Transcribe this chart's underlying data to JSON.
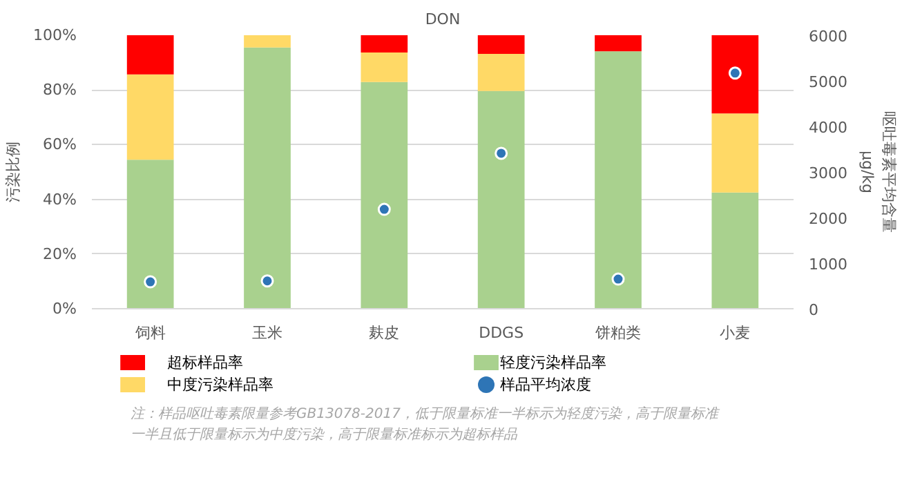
{
  "chart_data": {
    "type": "bar",
    "title": "DON",
    "ylabel": "污染比例",
    "y2label": "呕吐毒素平均含量\nμg/kg",
    "categories": [
      "饲料",
      "玉米",
      "麸皮",
      "DDGS",
      "饼粕类",
      "小麦"
    ],
    "stacked": true,
    "series": [
      {
        "name": "轻度污染样品率",
        "color": "#a9d18e",
        "values": [
          54.5,
          95.5,
          82.9,
          79.6,
          94.1,
          42.5
        ]
      },
      {
        "name": "中度污染样品率",
        "color": "#ffd966",
        "values": [
          31.2,
          4.5,
          10.8,
          13.6,
          0,
          28.9
        ]
      },
      {
        "name": "超标样品率",
        "color": "#ff0000",
        "values": [
          14.3,
          0,
          6.3,
          6.8,
          5.9,
          28.6
        ]
      },
      {
        "name": "样品平均浓度",
        "type": "scatter",
        "axis": "y2",
        "color": "#2e75b6",
        "values": [
          590,
          610,
          2180,
          3410,
          650,
          5170
        ]
      }
    ],
    "ylim": [
      0,
      100
    ],
    "yticks": [
      {
        "value": 0,
        "label": "0%"
      },
      {
        "value": 20,
        "label": "20%"
      },
      {
        "value": 40,
        "label": "40%"
      },
      {
        "value": 60,
        "label": "60%"
      },
      {
        "value": 80,
        "label": "80%"
      },
      {
        "value": 100,
        "label": "100%"
      }
    ],
    "y2lim": [
      0,
      6000
    ],
    "y2ticks": [
      0,
      1000,
      2000,
      3000,
      4000,
      5000,
      6000
    ],
    "grid": "y",
    "legend": "bottom",
    "marker": "circle",
    "annotations": [
      "注：样品呕吐毒素限量参考GB13078-2017，低于限量标准一半标示为轻度污染，高于限量标准",
      "一半且低于限量标示为中度污染，高于限量标准标示为超标样品"
    ]
  }
}
